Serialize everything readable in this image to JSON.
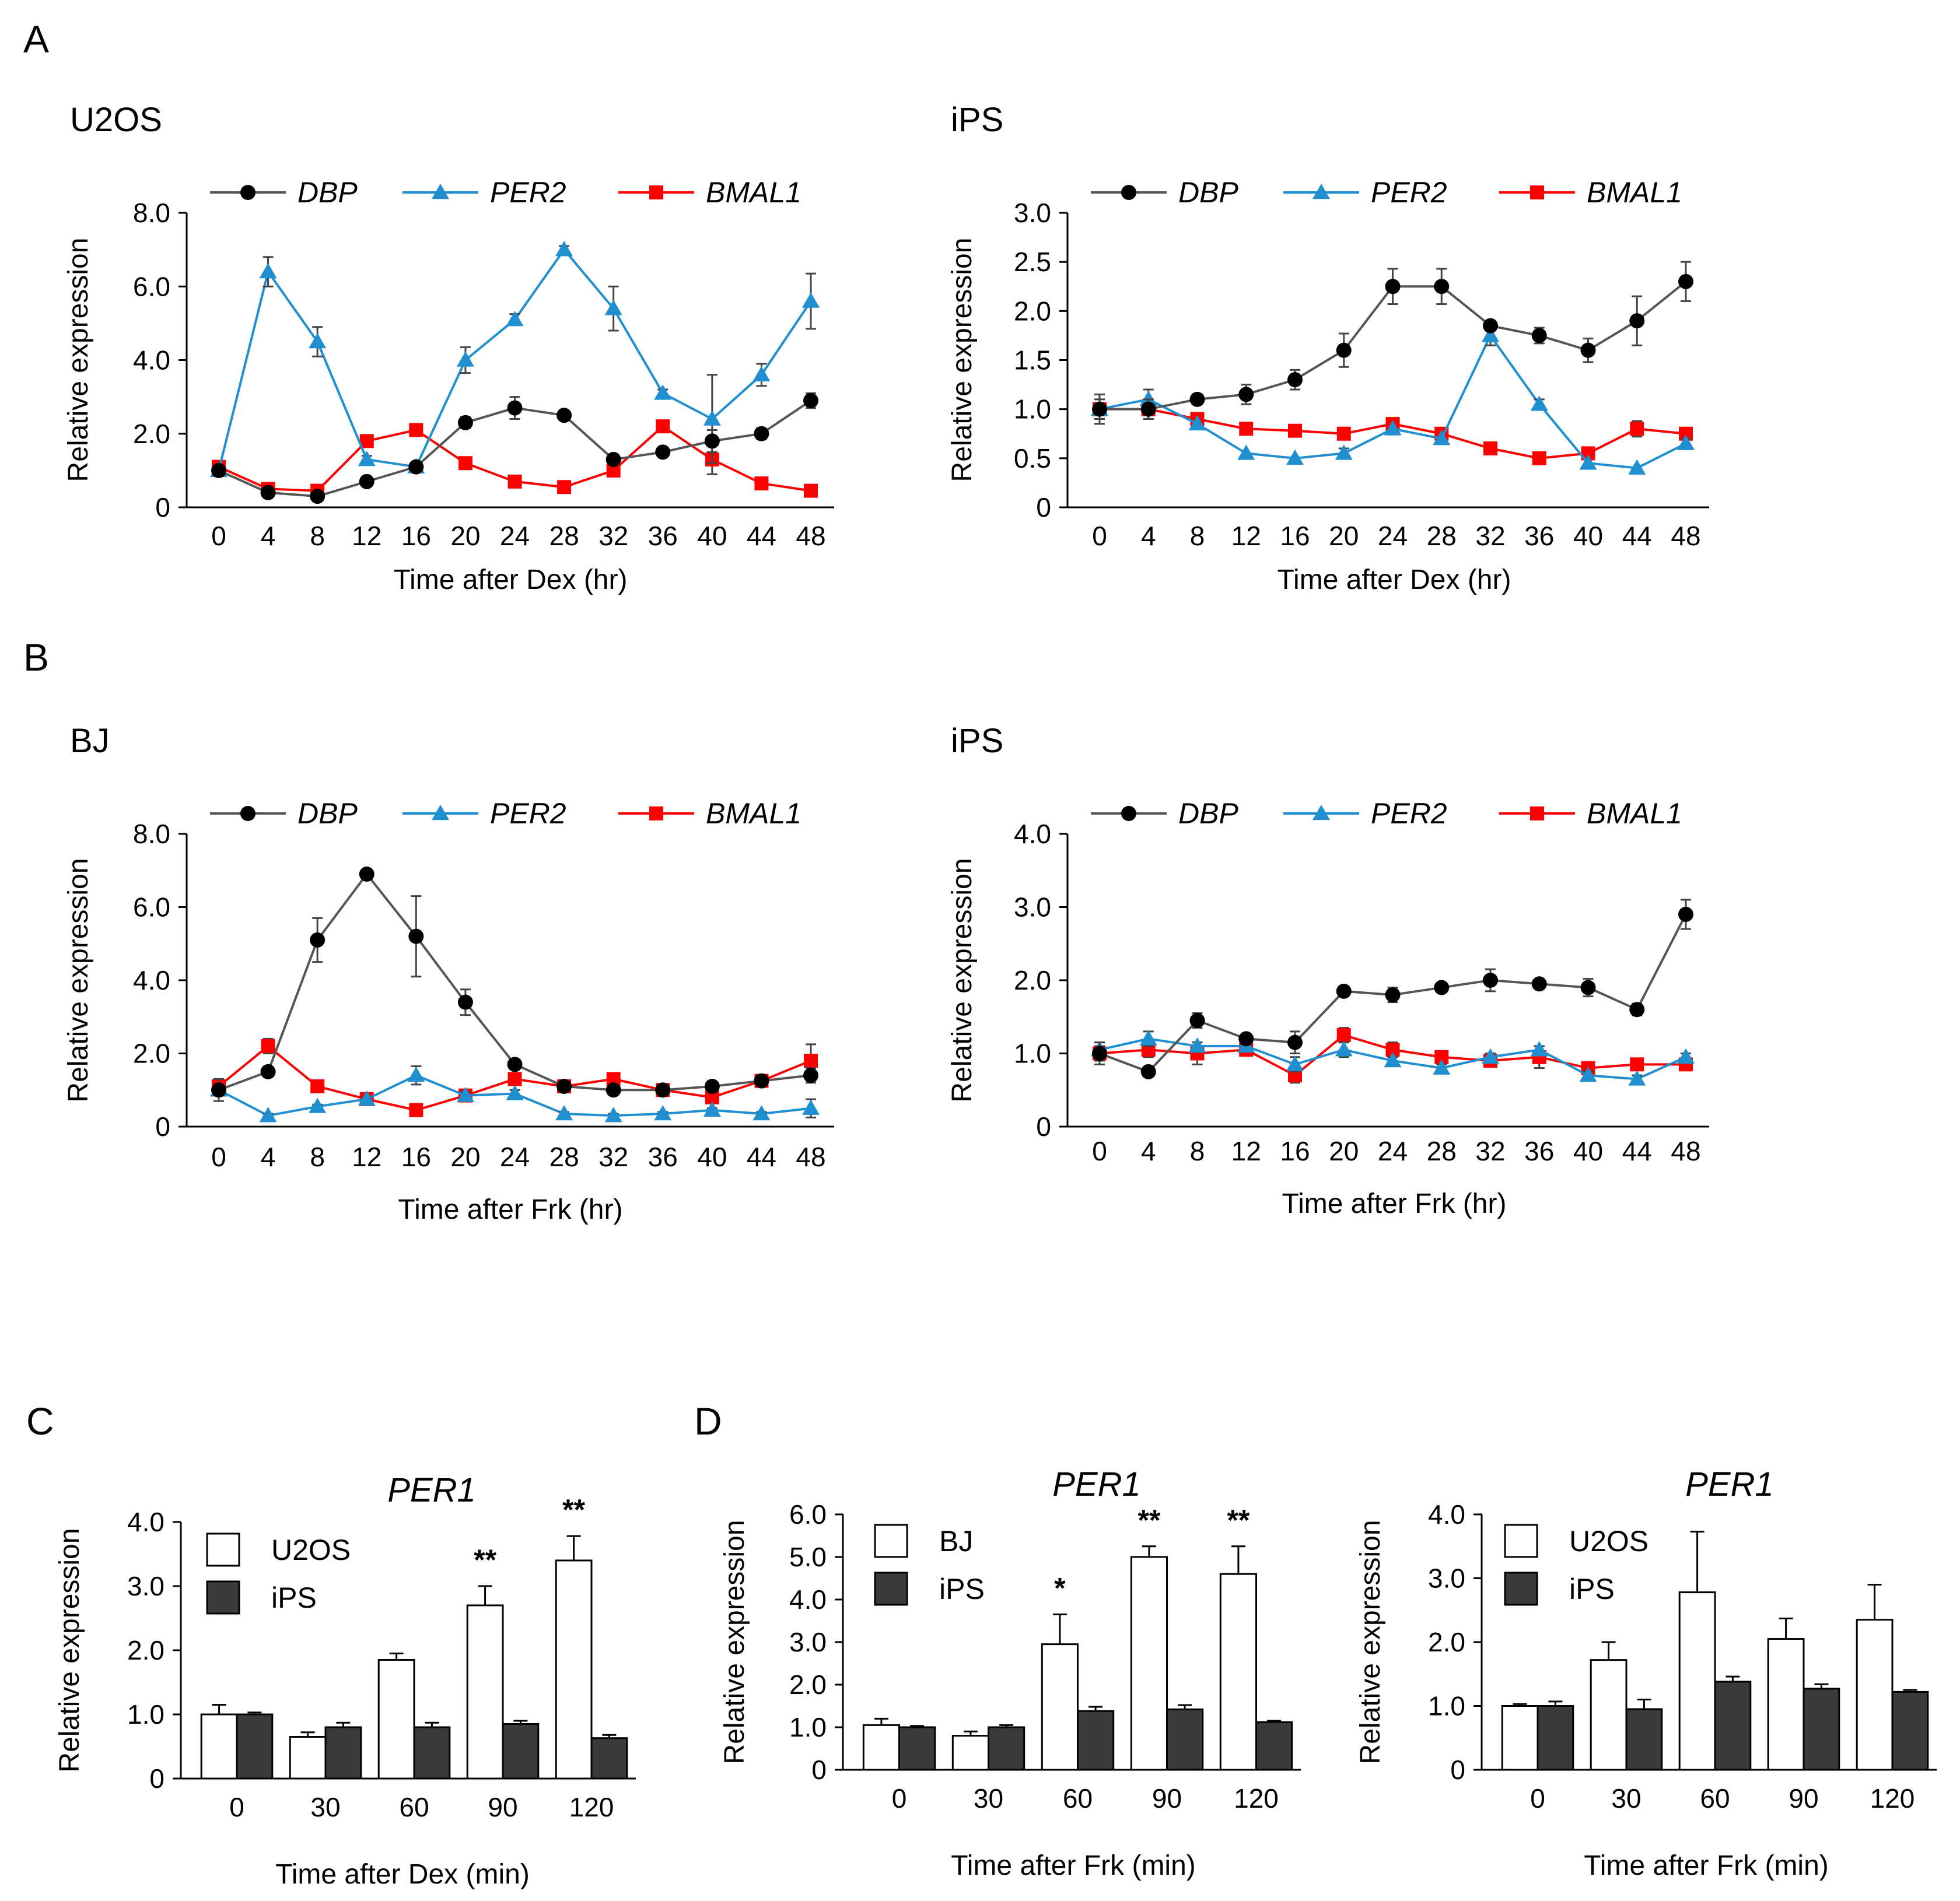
{
  "panels": {
    "A": "A",
    "B": "B",
    "C": "C",
    "D": "D"
  },
  "colors": {
    "DBP": "#000000",
    "PER2": "#1f8fcf",
    "BMAL1": "#ff0000",
    "line_DBP": "#555555",
    "bar_open": "#ffffff",
    "bar_filled": "#3a3a3a"
  },
  "chart_data": [
    {
      "id": "A-U2OS",
      "type": "line",
      "title": "U2OS",
      "xlabel": "Time after Dex (hr)",
      "ylabel": "Relative expression",
      "x": [
        0,
        4,
        8,
        12,
        16,
        20,
        24,
        28,
        32,
        36,
        40,
        44,
        48
      ],
      "ylim": [
        0,
        8
      ],
      "yticks": [
        "0",
        "2.0",
        "4.0",
        "6.0",
        "8.0"
      ],
      "ytick_values": [
        0,
        2,
        4,
        6,
        8
      ],
      "series": [
        {
          "name": "DBP",
          "marker": "circle",
          "values": [
            1.0,
            0.4,
            0.3,
            0.7,
            1.1,
            2.3,
            2.7,
            2.5,
            1.3,
            1.5,
            1.8,
            2.0,
            2.9
          ],
          "errors": [
            0.05,
            0.1,
            0.1,
            0.1,
            0.1,
            0.15,
            0.3,
            0.1,
            0.1,
            0.1,
            0.3,
            0.15,
            0.2
          ]
        },
        {
          "name": "PER2",
          "marker": "triangle",
          "values": [
            1.0,
            6.4,
            4.5,
            1.3,
            1.1,
            4.0,
            5.1,
            7.0,
            5.4,
            3.1,
            2.4,
            3.6,
            5.6
          ],
          "errors": [
            0.05,
            0.4,
            0.4,
            0.1,
            0.1,
            0.35,
            0.15,
            0.1,
            0.6,
            0.1,
            1.2,
            0.3,
            0.75
          ]
        },
        {
          "name": "BMAL1",
          "marker": "square",
          "values": [
            1.1,
            0.5,
            0.45,
            1.8,
            2.1,
            1.2,
            0.7,
            0.55,
            1.0,
            2.2,
            1.3,
            0.65,
            0.45
          ],
          "errors": [
            0.05,
            0.05,
            0.05,
            0.1,
            0.1,
            0.1,
            0.05,
            0.05,
            0.15,
            0.1,
            0.4,
            0.05,
            0.05
          ]
        }
      ]
    },
    {
      "id": "A-iPS",
      "type": "line",
      "title": "iPS",
      "xlabel": "Time after Dex (hr)",
      "ylabel": "Relative expression",
      "x": [
        0,
        4,
        8,
        12,
        16,
        20,
        24,
        28,
        32,
        36,
        40,
        44,
        48
      ],
      "ylim": [
        0,
        3
      ],
      "yticks": [
        "0",
        "0.5",
        "1.0",
        "1.5",
        "2.0",
        "2.5",
        "3.0"
      ],
      "ytick_values": [
        0,
        0.5,
        1,
        1.5,
        2,
        2.5,
        3
      ],
      "series": [
        {
          "name": "DBP",
          "marker": "circle",
          "values": [
            1.0,
            1.0,
            1.1,
            1.15,
            1.3,
            1.6,
            2.25,
            2.25,
            1.85,
            1.75,
            1.6,
            1.9,
            2.3
          ],
          "errors": [
            0.15,
            0.1,
            0.05,
            0.1,
            0.1,
            0.17,
            0.18,
            0.18,
            0.05,
            0.08,
            0.12,
            0.25,
            0.2
          ]
        },
        {
          "name": "PER2",
          "marker": "triangle",
          "values": [
            1.0,
            1.1,
            0.85,
            0.55,
            0.5,
            0.55,
            0.8,
            0.7,
            1.75,
            1.05,
            0.45,
            0.4,
            0.65
          ],
          "errors": [
            0.05,
            0.1,
            0.03,
            0.03,
            0.03,
            0.05,
            0.03,
            0.03,
            0.1,
            0.05,
            0.03,
            0.03,
            0.05
          ]
        },
        {
          "name": "BMAL1",
          "marker": "square",
          "values": [
            1.0,
            1.0,
            0.9,
            0.8,
            0.78,
            0.75,
            0.85,
            0.75,
            0.6,
            0.5,
            0.55,
            0.8,
            0.75
          ],
          "errors": [
            0.1,
            0.1,
            0.05,
            0.05,
            0.05,
            0.05,
            0.05,
            0.03,
            0.03,
            0.03,
            0.05,
            0.08,
            0.05
          ]
        }
      ]
    },
    {
      "id": "B-BJ",
      "type": "line",
      "title": "BJ",
      "xlabel": "Time after Frk (hr)",
      "ylabel": "Relative expression",
      "x": [
        0,
        4,
        8,
        12,
        16,
        20,
        24,
        28,
        32,
        36,
        40,
        44,
        48
      ],
      "ylim": [
        0,
        8
      ],
      "yticks": [
        "0",
        "2.0",
        "4.0",
        "6.0",
        "8.0"
      ],
      "ytick_values": [
        0,
        2,
        4,
        6,
        8
      ],
      "series": [
        {
          "name": "DBP",
          "marker": "circle",
          "values": [
            1.0,
            1.5,
            5.1,
            6.9,
            5.2,
            3.4,
            1.7,
            1.1,
            1.0,
            1.0,
            1.1,
            1.25,
            1.4
          ],
          "errors": [
            0.1,
            0.1,
            0.6,
            0.1,
            1.1,
            0.35,
            0.1,
            0.1,
            0.1,
            0.1,
            0.1,
            0.1,
            0.2
          ]
        },
        {
          "name": "PER2",
          "marker": "triangle",
          "values": [
            1.0,
            0.3,
            0.55,
            0.75,
            1.4,
            0.85,
            0.9,
            0.35,
            0.3,
            0.35,
            0.45,
            0.35,
            0.5
          ],
          "errors": [
            0.3,
            0.05,
            0.05,
            0.05,
            0.25,
            0.1,
            0.1,
            0.05,
            0.05,
            0.05,
            0.05,
            0.05,
            0.25
          ]
        },
        {
          "name": "BMAL1",
          "marker": "square",
          "values": [
            1.1,
            2.2,
            1.1,
            0.75,
            0.45,
            0.85,
            1.3,
            1.1,
            1.3,
            1.0,
            0.8,
            1.25,
            1.8
          ],
          "errors": [
            0.15,
            0.2,
            0.1,
            0.1,
            0.05,
            0.05,
            0.1,
            0.1,
            0.1,
            0.1,
            0.1,
            0.1,
            0.45
          ]
        }
      ]
    },
    {
      "id": "B-iPS",
      "type": "line",
      "title": "iPS",
      "xlabel": "Time after Frk (hr)",
      "ylabel": "Relative expression",
      "x": [
        0,
        4,
        8,
        12,
        16,
        20,
        24,
        28,
        32,
        36,
        40,
        44,
        48
      ],
      "ylim": [
        0,
        4
      ],
      "yticks": [
        "0",
        "1.0",
        "2.0",
        "3.0",
        "4.0"
      ],
      "ytick_values": [
        0,
        1,
        2,
        3,
        4
      ],
      "series": [
        {
          "name": "DBP",
          "marker": "circle",
          "values": [
            1.0,
            0.75,
            1.45,
            1.2,
            1.15,
            1.85,
            1.8,
            1.9,
            2.0,
            1.95,
            1.9,
            1.6,
            2.9
          ],
          "errors": [
            0.15,
            0.05,
            0.1,
            0.05,
            0.15,
            0.05,
            0.1,
            0.05,
            0.15,
            0.05,
            0.12,
            0.08,
            0.2
          ]
        },
        {
          "name": "PER2",
          "marker": "triangle",
          "values": [
            1.05,
            1.2,
            1.1,
            1.1,
            0.85,
            1.05,
            0.9,
            0.8,
            0.95,
            1.05,
            0.7,
            0.65,
            0.95
          ],
          "errors": [
            0.1,
            0.1,
            0.05,
            0.05,
            0.1,
            0.1,
            0.05,
            0.05,
            0.05,
            0.05,
            0.05,
            0.05,
            0.05
          ]
        },
        {
          "name": "BMAL1",
          "marker": "square",
          "values": [
            1.0,
            1.05,
            1.0,
            1.05,
            0.7,
            1.25,
            1.05,
            0.95,
            0.9,
            0.95,
            0.8,
            0.85,
            0.85
          ],
          "errors": [
            0.1,
            0.1,
            0.15,
            0.05,
            0.1,
            0.1,
            0.1,
            0.05,
            0.05,
            0.15,
            0.05,
            0.05,
            0.05
          ]
        }
      ]
    },
    {
      "id": "C-PER1",
      "type": "bar",
      "title": "PER1",
      "xlabel": "Time after Dex (min)",
      "ylabel": "Relative expression",
      "categories": [
        "0",
        "30",
        "60",
        "90",
        "120"
      ],
      "ylim": [
        0,
        4
      ],
      "yticks": [
        "0",
        "1.0",
        "2.0",
        "3.0",
        "4.0"
      ],
      "ytick_values": [
        0,
        1,
        2,
        3,
        4
      ],
      "series": [
        {
          "name": "U2OS",
          "fill": "open",
          "values": [
            1.0,
            0.65,
            1.85,
            2.7,
            3.4
          ],
          "errors": [
            0.15,
            0.07,
            0.1,
            0.3,
            0.38
          ]
        },
        {
          "name": "iPS",
          "fill": "filled",
          "values": [
            1.0,
            0.8,
            0.8,
            0.85,
            0.63
          ],
          "errors": [
            0.03,
            0.07,
            0.07,
            0.05,
            0.05
          ]
        }
      ],
      "significance": [
        "",
        "",
        "",
        "**",
        "**"
      ]
    },
    {
      "id": "D-PER1-BJ",
      "type": "bar",
      "title": "PER1",
      "xlabel": "Time after Frk (min)",
      "ylabel": "Relative expression",
      "categories": [
        "0",
        "30",
        "60",
        "90",
        "120"
      ],
      "ylim": [
        0,
        6
      ],
      "yticks": [
        "0",
        "1.0",
        "2.0",
        "3.0",
        "4.0",
        "5.0",
        "6.0"
      ],
      "ytick_values": [
        0,
        1,
        2,
        3,
        4,
        5,
        6
      ],
      "series": [
        {
          "name": "BJ",
          "fill": "open",
          "values": [
            1.05,
            0.8,
            2.95,
            5.0,
            4.6
          ],
          "errors": [
            0.15,
            0.1,
            0.7,
            0.25,
            0.65
          ]
        },
        {
          "name": "iPS",
          "fill": "filled",
          "values": [
            1.0,
            1.0,
            1.38,
            1.42,
            1.12
          ],
          "errors": [
            0.03,
            0.05,
            0.1,
            0.1,
            0.03
          ]
        }
      ],
      "significance": [
        "",
        "",
        "*",
        "**",
        "**"
      ]
    },
    {
      "id": "D-PER1-U2OS",
      "type": "bar",
      "title": "PER1",
      "xlabel": "Time after Frk (min)",
      "ylabel": "Relative expression",
      "categories": [
        "0",
        "30",
        "60",
        "90",
        "120"
      ],
      "ylim": [
        0,
        4
      ],
      "yticks": [
        "0",
        "1.0",
        "2.0",
        "3.0",
        "4.0"
      ],
      "ytick_values": [
        0,
        1,
        2,
        3,
        4
      ],
      "series": [
        {
          "name": "U2OS",
          "fill": "open",
          "values": [
            1.0,
            1.72,
            2.78,
            2.05,
            2.35
          ],
          "errors": [
            0.03,
            0.28,
            0.95,
            0.32,
            0.55
          ]
        },
        {
          "name": "iPS",
          "fill": "filled",
          "values": [
            1.0,
            0.95,
            1.38,
            1.27,
            1.22
          ],
          "errors": [
            0.07,
            0.15,
            0.08,
            0.07,
            0.03
          ]
        }
      ],
      "significance": [
        "",
        "",
        "",
        "",
        ""
      ]
    }
  ]
}
